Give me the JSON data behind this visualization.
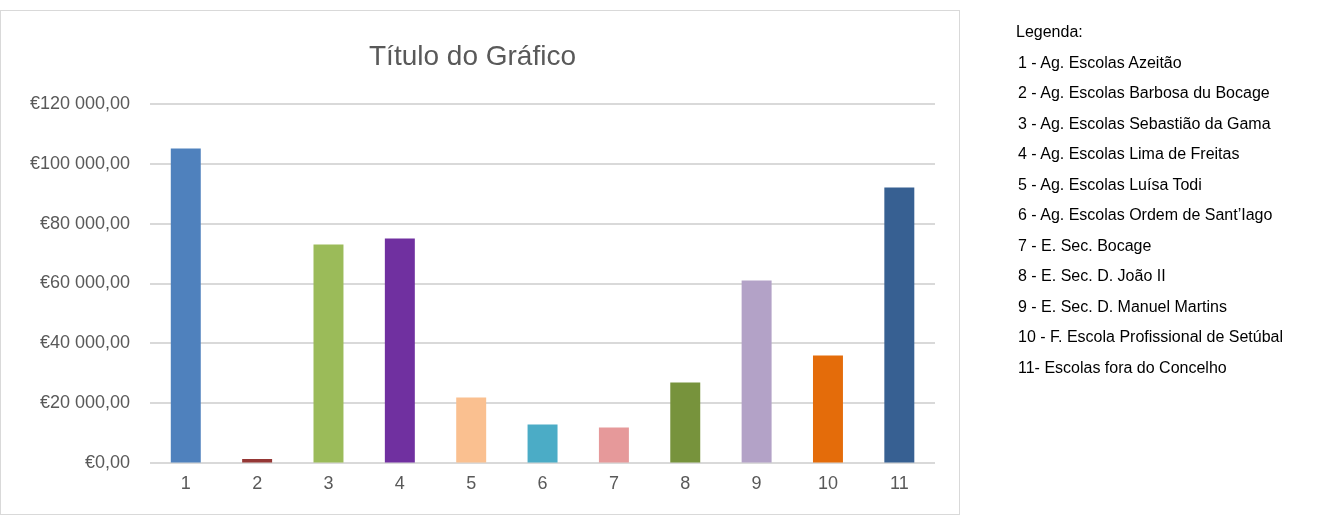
{
  "chart_data": {
    "type": "bar",
    "title": "Título do Gráfico",
    "categories": [
      "1",
      "2",
      "3",
      "4",
      "5",
      "6",
      "7",
      "8",
      "9",
      "10",
      "11"
    ],
    "values": [
      105000,
      1500,
      73000,
      75000,
      22000,
      13000,
      12000,
      27000,
      61000,
      36000,
      92000
    ],
    "colors": [
      "#4f81bd",
      "#953735",
      "#9bbb59",
      "#7030a0",
      "#fac090",
      "#4bacc6",
      "#e6999a",
      "#77933c",
      "#b3a2c7",
      "#e46c0a",
      "#376092"
    ],
    "ylim": [
      0,
      120000
    ],
    "yticks": [
      {
        "value": 0,
        "label": "€0,00"
      },
      {
        "value": 20000,
        "label": "€20 000,00"
      },
      {
        "value": 40000,
        "label": "€40 000,00"
      },
      {
        "value": 60000,
        "label": "€60 000,00"
      },
      {
        "value": 80000,
        "label": "€80 000,00"
      },
      {
        "value": 100000,
        "label": "€100 000,00"
      },
      {
        "value": 120000,
        "label": "€120 000,00"
      }
    ],
    "grid": "y",
    "legend": false,
    "annotations": [
      "Legenda:",
      "1 - Ag. Escolas Azeitão",
      "2 - Ag. Escolas Barbosa du Bocage",
      "3 - Ag. Escolas Sebastião da Gama",
      "4 - Ag. Escolas Lima de Freitas",
      "5 - Ag. Escolas Luísa Todi",
      "6 - Ag. Escolas Ordem de Sant’Iago",
      "7 - E. Sec. Bocage",
      "8 - E. Sec. D. João II",
      "9 - E. Sec. D. Manuel Martins",
      "10 - F. Escola Profissional de Setúbal",
      "11- Escolas fora do Concelho"
    ]
  }
}
